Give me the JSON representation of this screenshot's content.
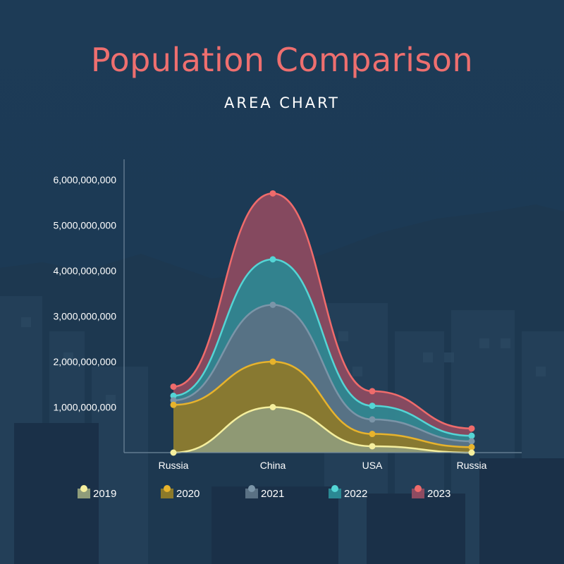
{
  "title": "Population Comparison",
  "subtitle": "AREA CHART",
  "colors": {
    "background": "#1c3a55",
    "title": "#ee6f6f",
    "axis": "#6f879b"
  },
  "chart_data": {
    "type": "area",
    "categories": [
      "Russia",
      "China",
      "USA",
      "Russia"
    ],
    "y_ticks": [
      "1,000,000,000",
      "2,000,000,000",
      "3,000,000,000",
      "4,000,000,000",
      "5,000,000,000",
      "6,000,000,000"
    ],
    "ylim": [
      0,
      6000000000
    ],
    "stacked": false,
    "legend_position": "bottom",
    "grid": false,
    "series": [
      {
        "name": "2023",
        "values": [
          1450000000,
          5700000000,
          1350000000,
          530000000
        ],
        "color": "#ef6b6b",
        "fill": "#8e4b61"
      },
      {
        "name": "2022",
        "values": [
          1250000000,
          4250000000,
          1030000000,
          370000000
        ],
        "color": "#54d5d5",
        "fill": "#2b8893"
      },
      {
        "name": "2021",
        "values": [
          1150000000,
          3250000000,
          730000000,
          250000000
        ],
        "color": "#7b95a8",
        "fill": "#5a7184"
      },
      {
        "name": "2020",
        "values": [
          1050000000,
          2000000000,
          410000000,
          120000000
        ],
        "color": "#e7b32c",
        "fill": "#8c7a2a"
      },
      {
        "name": "2019",
        "values": [
          0,
          1000000000,
          140000000,
          0
        ],
        "color": "#f5ef9e",
        "fill": "#8f9c7a"
      }
    ]
  }
}
